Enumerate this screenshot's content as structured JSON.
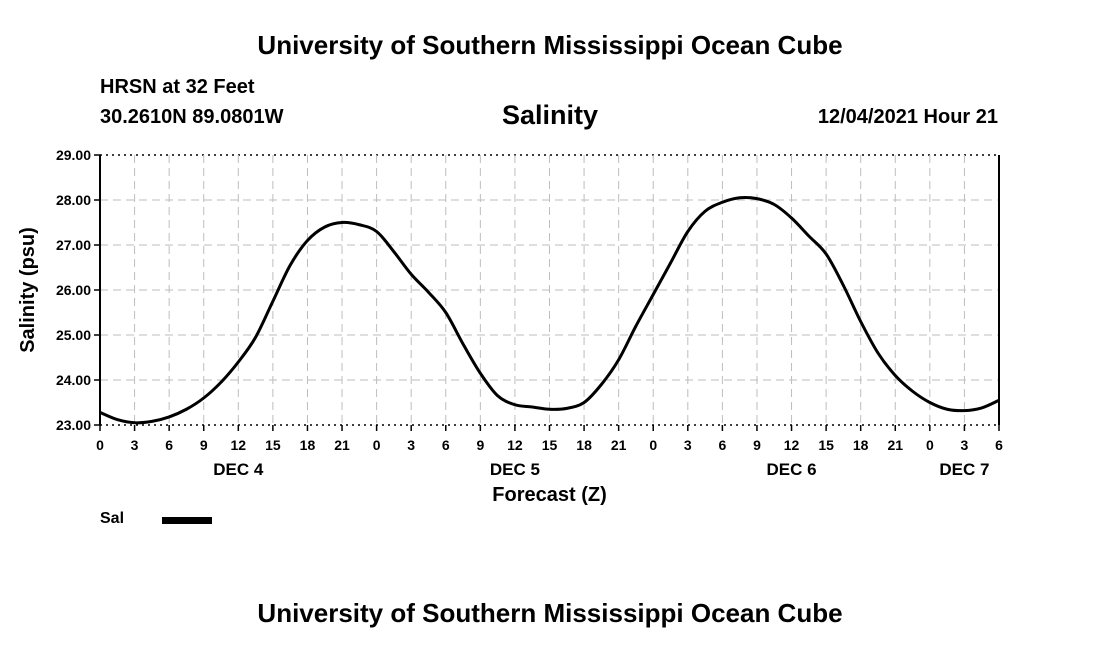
{
  "header": {
    "title": "University of Southern Mississippi Ocean Cube",
    "station": "HRSN at 32 Feet",
    "coordinates": "30.2610N  89.0801W",
    "datetime": "12/04/2021 Hour 21"
  },
  "footer": {
    "title": "University of Southern Mississippi Ocean Cube"
  },
  "chart_data": {
    "type": "line",
    "title": "Salinity",
    "xlabel": "Forecast (Z)",
    "ylabel": "Salinity (psu)",
    "ylim": [
      23.0,
      29.0
    ],
    "yticks": [
      "23.00",
      "24.00",
      "25.00",
      "26.00",
      "27.00",
      "28.00",
      "29.00"
    ],
    "xlim_hours": [
      0,
      78
    ],
    "xtick_labels": [
      "0",
      "3",
      "6",
      "9",
      "12",
      "15",
      "18",
      "21",
      "0",
      "3",
      "6",
      "9",
      "12",
      "15",
      "18",
      "21",
      "0",
      "3",
      "6",
      "9",
      "12",
      "15",
      "18",
      "21",
      "0",
      "3",
      "6"
    ],
    "day_labels": [
      {
        "label": "DEC 4",
        "hour": 12
      },
      {
        "label": "DEC 5",
        "hour": 36
      },
      {
        "label": "DEC 6",
        "hour": 60
      },
      {
        "label": "DEC 7",
        "hour": 75
      }
    ],
    "grid": true,
    "legend": "bottom-left",
    "series": [
      {
        "name": "Sal",
        "color": "#000000",
        "x_hours": [
          0,
          1.5,
          3,
          4.5,
          6,
          7.5,
          9,
          10.5,
          12,
          13.5,
          15,
          16.5,
          18,
          19.5,
          21,
          22.5,
          24,
          25.5,
          27,
          28.5,
          30,
          31.5,
          33,
          34.5,
          36,
          37.5,
          39,
          40.5,
          42,
          43.5,
          45,
          46.5,
          48,
          49.5,
          51,
          52.5,
          54,
          55.5,
          57,
          58.5,
          60,
          61.5,
          63,
          64.5,
          66,
          67.5,
          69,
          70.5,
          72,
          73.5,
          75,
          76.5,
          78
        ],
        "values": [
          23.28,
          23.12,
          23.05,
          23.08,
          23.18,
          23.35,
          23.6,
          23.95,
          24.4,
          24.95,
          25.75,
          26.55,
          27.1,
          27.4,
          27.5,
          27.45,
          27.3,
          26.85,
          26.35,
          25.95,
          25.5,
          24.8,
          24.15,
          23.65,
          23.45,
          23.4,
          23.35,
          23.37,
          23.5,
          23.9,
          24.45,
          25.2,
          25.9,
          26.6,
          27.3,
          27.75,
          27.95,
          28.05,
          28.03,
          27.9,
          27.6,
          27.2,
          26.8,
          26.1,
          25.3,
          24.6,
          24.1,
          23.75,
          23.5,
          23.35,
          23.32,
          23.38,
          23.55
        ]
      }
    ]
  }
}
